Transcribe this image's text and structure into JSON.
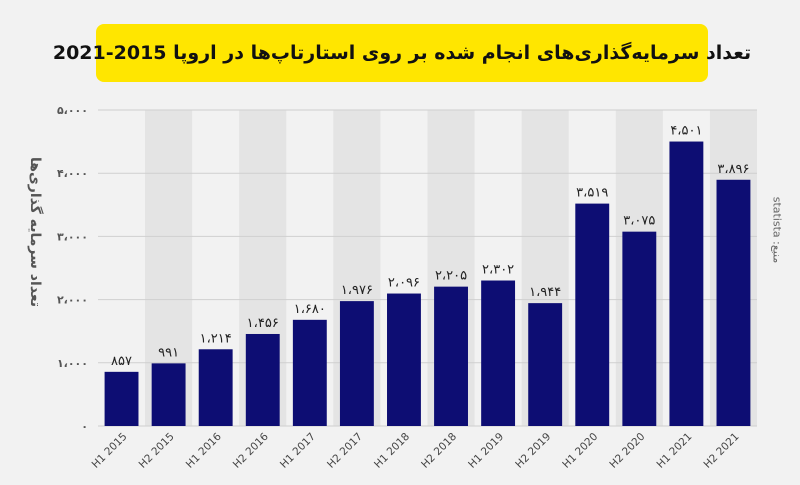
{
  "chart_data": {
    "type": "bar",
    "title": "تعداد سرمایه‌گذاری‌های انجام شده بر روی استارتاپ‌ها در اروپا 2015-2021",
    "ylabel": "تعداد سرمایه گذاری‌ها",
    "xlabel": "",
    "ylim": [
      0,
      5000
    ],
    "y_ticks": [
      0,
      1000,
      2000,
      3000,
      4000,
      5000
    ],
    "y_tick_labels": [
      "۰",
      "۱،۰۰۰",
      "۲،۰۰۰",
      "۳،۰۰۰",
      "۴،۰۰۰",
      "۵،۰۰۰"
    ],
    "categories": [
      "H1 2015",
      "H2 2015",
      "H1 2016",
      "H2 2016",
      "H1 2017",
      "H2 2017",
      "H1 2018",
      "H2 2018",
      "H1 2019",
      "H2 2019",
      "H1 2020",
      "H2 2020",
      "H1 2021",
      "H2 2021"
    ],
    "values": [
      857,
      991,
      1214,
      1456,
      1680,
      1976,
      2096,
      2205,
      2302,
      1944,
      3519,
      3075,
      4501,
      3896
    ],
    "value_labels": [
      "۸۵۷",
      "۹۹۱",
      "۱،۲۱۴",
      "۱،۴۵۶",
      "۱،۶۸۰",
      "۱،۹۷۶",
      "۲،۰۹۶",
      "۲،۲۰۵",
      "۲،۳۰۲",
      "۱،۹۴۴",
      "۳،۵۱۹",
      "۳،۰۷۵",
      "۴،۵۰۱",
      "۳،۸۹۶"
    ],
    "grid": true,
    "source": "منبع: statista",
    "colors": {
      "bar": "#0d0d73",
      "title_bg": "#ffe600",
      "background": "#f2f2f2",
      "band": "#e4e4e4",
      "grid": "#cfcfcf"
    }
  }
}
